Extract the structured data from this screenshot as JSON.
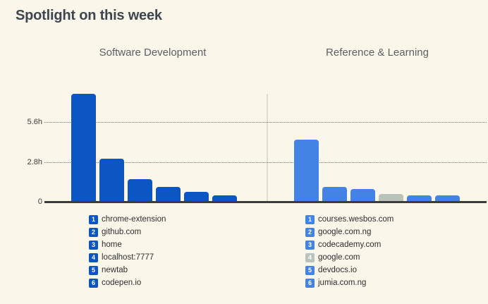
{
  "page": {
    "title": "Spotlight on this week"
  },
  "chart_data": [
    {
      "type": "bar",
      "title": "Software Development",
      "categories": [
        "chrome-extension",
        "github.com",
        "home",
        "localhost:7777",
        "newtab",
        "codepen.io"
      ],
      "values": [
        7.6,
        3.05,
        1.6,
        1.05,
        0.7,
        0.45
      ],
      "value_unit": "h",
      "legend_ranks": [
        1,
        2,
        3,
        4,
        5,
        6
      ],
      "ylim": [
        0,
        7.8
      ],
      "yticks": [
        {
          "value": 5.6,
          "label": "5.6h"
        },
        {
          "value": 2.8,
          "label": "2.8h"
        },
        {
          "value": 0,
          "label": "0"
        }
      ],
      "grid": "horizontal dotted",
      "legend_position": "bottom",
      "bar_color": "#0b55c4",
      "bar_colors": {}
    },
    {
      "type": "bar",
      "title": "Reference & Learning",
      "categories": [
        "courses.wesbos.com",
        "google.com.ng",
        "codecademy.com",
        "google.com",
        "devdocs.io",
        "jumia.com.ng"
      ],
      "values": [
        4.4,
        1.05,
        0.9,
        0.55,
        0.47,
        0.45
      ],
      "value_unit": "h",
      "legend_ranks": [
        1,
        2,
        3,
        4,
        5,
        6
      ],
      "ylim": [
        0,
        7.8
      ],
      "yticks": [
        {
          "value": 5.6,
          "label": "5.6h"
        },
        {
          "value": 2.8,
          "label": "2.8h"
        },
        {
          "value": 0,
          "label": "0"
        }
      ],
      "grid": "horizontal dotted",
      "legend_position": "bottom",
      "bar_color": "#4383e4",
      "bar_colors": {
        "3": "#b9c3ba"
      }
    }
  ],
  "colors": {
    "background": "#faf6e9",
    "title_text": "#3d4650",
    "chart_title_text": "#5b6065",
    "axis_text": "#3b3b3b",
    "baseline": "#3c3c3c",
    "gridline": "#74746a",
    "divider": "#deddd2",
    "left_bar_blue": "#0b55c4",
    "right_bar_blue": "#4383e4",
    "muted_gray_bar": "#b9c3ba",
    "legend_text": "#2e2e2e",
    "badge_text": "#ffffff"
  }
}
